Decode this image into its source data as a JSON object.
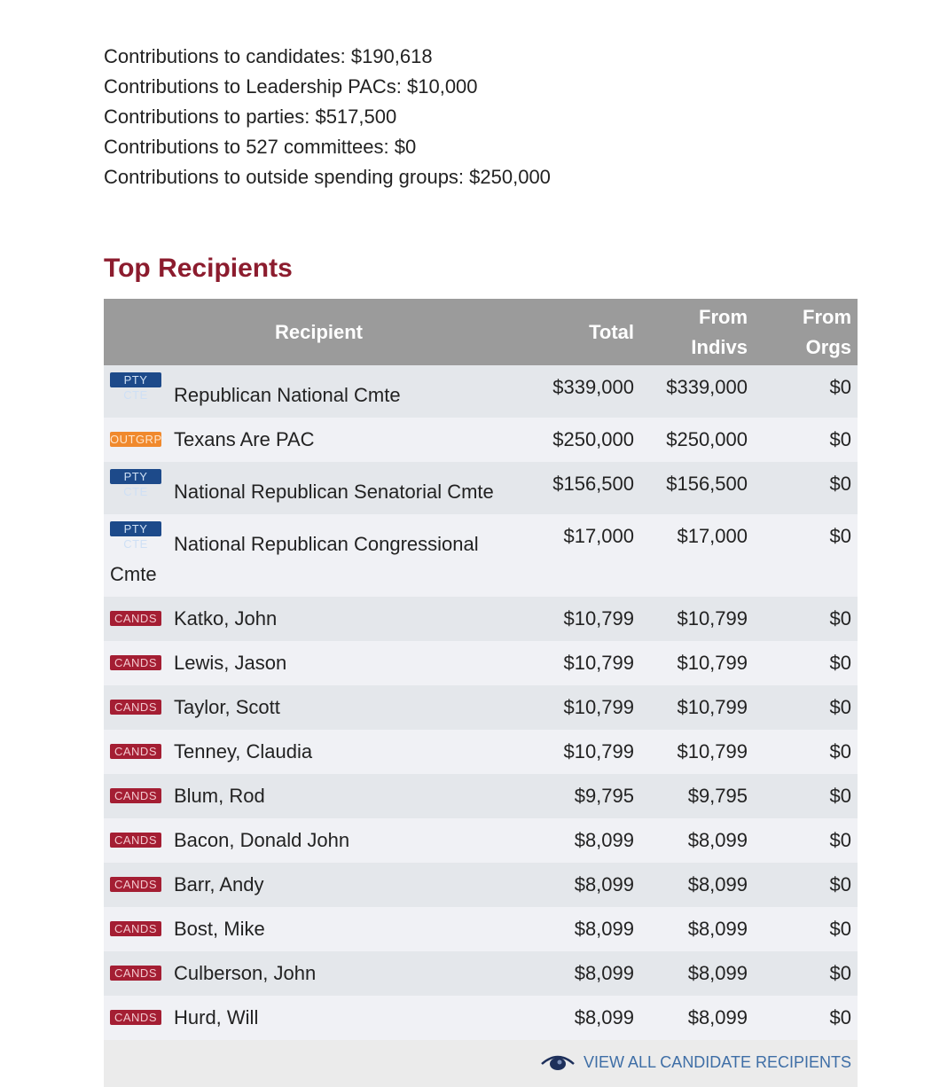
{
  "summary": [
    "Contributions to candidates: $190,618",
    "Contributions to Leadership PACs: $10,000",
    "Contributions to parties: $517,500",
    "Contributions to 527 committees: $0",
    "Contributions to outside spending groups: $250,000"
  ],
  "heading": "Top Recipients",
  "table": {
    "headers": [
      "Recipient",
      "Total",
      "From Indivs",
      "From Orgs"
    ],
    "rows": [
      [
        "PTY CTE",
        "Republican National Cmte",
        "$339,000",
        "$339,000",
        "$0"
      ],
      [
        "OUTGRP",
        "Texans Are PAC",
        "$250,000",
        "$250,000",
        "$0"
      ],
      [
        "PTY CTE",
        "National Republican Senatorial Cmte",
        "$156,500",
        "$156,500",
        "$0"
      ],
      [
        "PTY CTE",
        "National Republican Congressional Cmte",
        "$17,000",
        "$17,000",
        "$0"
      ],
      [
        "CANDS",
        "Katko, John",
        "$10,799",
        "$10,799",
        "$0"
      ],
      [
        "CANDS",
        "Lewis, Jason",
        "$10,799",
        "$10,799",
        "$0"
      ],
      [
        "CANDS",
        "Taylor, Scott",
        "$10,799",
        "$10,799",
        "$0"
      ],
      [
        "CANDS",
        "Tenney, Claudia",
        "$10,799",
        "$10,799",
        "$0"
      ],
      [
        "CANDS",
        "Blum, Rod",
        "$9,795",
        "$9,795",
        "$0"
      ],
      [
        "CANDS",
        "Bacon, Donald John",
        "$8,099",
        "$8,099",
        "$0"
      ],
      [
        "CANDS",
        "Barr, Andy",
        "$8,099",
        "$8,099",
        "$0"
      ],
      [
        "CANDS",
        "Bost, Mike",
        "$8,099",
        "$8,099",
        "$0"
      ],
      [
        "CANDS",
        "Culberson, John",
        "$8,099",
        "$8,099",
        "$0"
      ],
      [
        "CANDS",
        "Hurd, Will",
        "$8,099",
        "$8,099",
        "$0"
      ]
    ],
    "footer_link": "VIEW ALL CANDIDATE RECIPIENTS"
  }
}
